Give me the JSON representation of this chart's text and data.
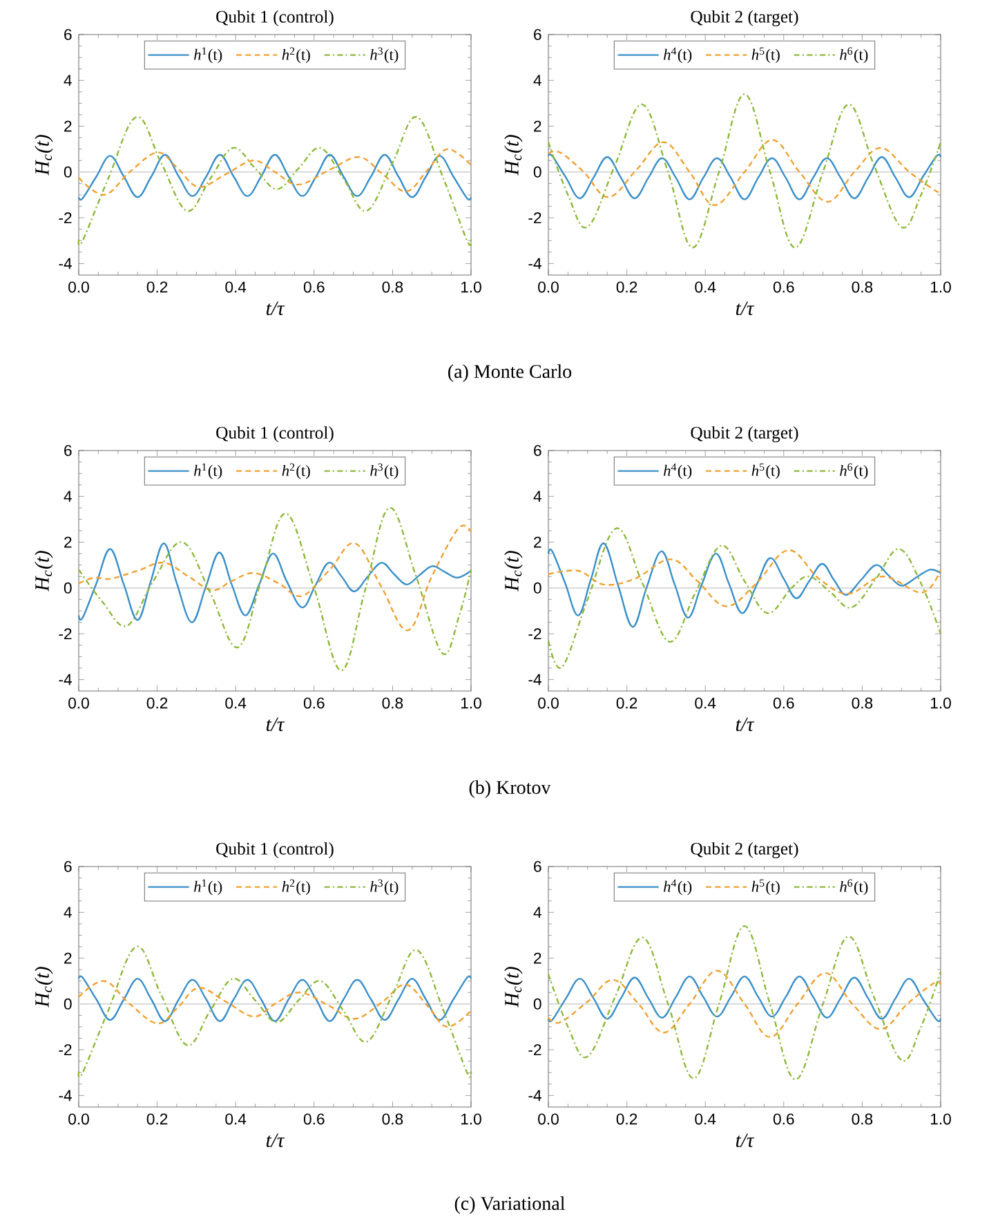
{
  "chart_data": [
    {
      "type": "line",
      "title": "Qubit 1 (control)",
      "xlabel": "t/τ",
      "ylabel": "H$_{c}$(t)",
      "xlim": [
        0,
        1
      ],
      "ylim": [
        -4.5,
        6
      ],
      "xticks": [
        {
          "value": 0,
          "label": "0.0"
        },
        {
          "value": 0.2,
          "label": "0.2"
        },
        {
          "value": 0.4,
          "label": "0.4"
        },
        {
          "value": 0.6,
          "label": "0.6"
        },
        {
          "value": 0.8,
          "label": "0.8"
        },
        {
          "value": 1,
          "label": "1.0"
        }
      ],
      "yticks": [
        -4,
        -2,
        0,
        2,
        4,
        6
      ],
      "legend": "top",
      "ref_lines": [
        {
          "axis": "y",
          "value": 0,
          "color": "#d6d6d6"
        }
      ],
      "annotations": [
        "(a) Monte Carlo"
      ],
      "series": [
        {
          "name": "*h*$^{1}$(t)",
          "color": "#3a8fc9",
          "line_style": "solid",
          "x": [
            0,
            0.01,
            0.045,
            0.08,
            0.115,
            0.15,
            0.185,
            0.22,
            0.255,
            0.29,
            0.325,
            0.36,
            0.395,
            0.43,
            0.465,
            0.5,
            0.535,
            0.57,
            0.605,
            0.64,
            0.675,
            0.71,
            0.745,
            0.78,
            0.815,
            0.85,
            0.885,
            0.92,
            0.955,
            0.99,
            1.0
          ],
          "values": [
            -1.1,
            -1.15,
            -0.2,
            0.7,
            -0.2,
            -1.1,
            -0.2,
            0.75,
            -0.2,
            -1.05,
            -0.2,
            0.75,
            -0.2,
            -1.05,
            -0.2,
            0.75,
            -0.2,
            -1.05,
            -0.2,
            0.75,
            -0.2,
            -1.05,
            -0.2,
            0.75,
            -0.2,
            -1.1,
            -0.2,
            0.7,
            -0.2,
            -1.15,
            -1.1
          ]
        },
        {
          "name": "*h*$^{2}$(t)",
          "color": "#f0a030",
          "line_style": "dashed",
          "x": [
            0,
            0.065,
            0.13,
            0.2,
            0.25,
            0.305,
            0.375,
            0.445,
            0.5,
            0.56,
            0.64,
            0.715,
            0.775,
            0.835,
            0.89,
            0.94,
            1.0
          ],
          "values": [
            -0.25,
            -1.0,
            0.0,
            0.85,
            0.2,
            -0.65,
            -0.1,
            0.5,
            0.0,
            -0.55,
            0.1,
            0.65,
            -0.1,
            -0.85,
            0.1,
            1.0,
            0.3
          ]
        },
        {
          "name": "*h*$^{3}$(t)",
          "color": "#8db83a",
          "line_style": "dotted",
          "x": [
            0,
            0.01,
            0.075,
            0.147,
            0.21,
            0.276,
            0.335,
            0.393,
            0.45,
            0.505,
            0.56,
            0.616,
            0.675,
            0.734,
            0.8,
            0.862,
            0.93,
            0.99,
            1.0
          ],
          "values": [
            -2.95,
            -3.0,
            -0.3,
            2.4,
            0.4,
            -1.7,
            -0.3,
            1.05,
            0.15,
            -0.75,
            0.15,
            1.05,
            -0.3,
            -1.7,
            0.4,
            2.4,
            -0.3,
            -3.0,
            -2.95
          ]
        }
      ]
    },
    {
      "type": "line",
      "title": "Qubit 2 (target)",
      "xlabel": "t/τ",
      "ylabel": "H$_{c}$(t)",
      "xlim": [
        0,
        1
      ],
      "ylim": [
        -4.5,
        6
      ],
      "xticks": [
        {
          "value": 0,
          "label": "0.0"
        },
        {
          "value": 0.2,
          "label": "0.2"
        },
        {
          "value": 0.4,
          "label": "0.4"
        },
        {
          "value": 0.6,
          "label": "0.6"
        },
        {
          "value": 0.8,
          "label": "0.8"
        },
        {
          "value": 1,
          "label": "1.0"
        }
      ],
      "yticks": [
        -4,
        -2,
        0,
        2,
        4,
        6
      ],
      "legend": "top",
      "ref_lines": [
        {
          "axis": "y",
          "value": 0,
          "color": "#d6d6d6"
        }
      ],
      "series": [
        {
          "name": "*h*$^{4}$(t)",
          "color": "#3a8fc9",
          "line_style": "solid",
          "x": [
            0,
            0.01,
            0.045,
            0.08,
            0.115,
            0.15,
            0.185,
            0.22,
            0.255,
            0.29,
            0.325,
            0.36,
            0.395,
            0.43,
            0.465,
            0.5,
            0.535,
            0.57,
            0.605,
            0.64,
            0.675,
            0.71,
            0.745,
            0.78,
            0.815,
            0.85,
            0.885,
            0.92,
            0.955,
            0.99,
            1.0
          ],
          "values": [
            0.7,
            0.7,
            -0.25,
            -1.15,
            -0.25,
            0.65,
            -0.25,
            -1.15,
            -0.25,
            0.6,
            -0.25,
            -1.2,
            -0.25,
            0.6,
            -0.25,
            -1.2,
            -0.25,
            0.6,
            -0.25,
            -1.2,
            -0.25,
            0.6,
            -0.25,
            -1.15,
            -0.25,
            0.65,
            -0.25,
            -1.1,
            -0.2,
            0.7,
            0.65
          ]
        },
        {
          "name": "*h*$^{5}$(t)",
          "color": "#f0a030",
          "line_style": "dashed",
          "x": [
            0,
            0.03,
            0.09,
            0.153,
            0.225,
            0.294,
            0.36,
            0.424,
            0.5,
            0.571,
            0.64,
            0.712,
            0.78,
            0.847,
            0.92,
            0.99,
            1.0
          ],
          "values": [
            0.8,
            0.85,
            0.0,
            -1.1,
            0.1,
            1.3,
            0.0,
            -1.45,
            0.0,
            1.4,
            0.0,
            -1.3,
            0.0,
            1.05,
            0.0,
            -0.85,
            -0.8
          ]
        },
        {
          "name": "*h*$^{6}$(t)",
          "color": "#8db83a",
          "line_style": "dotted",
          "x": [
            0,
            0.05,
            0.1,
            0.17,
            0.239,
            0.305,
            0.368,
            0.435,
            0.5,
            0.565,
            0.629,
            0.7,
            0.765,
            0.83,
            0.9,
            0.95,
            1.0
          ],
          "values": [
            1.3,
            -1.0,
            -2.4,
            0.3,
            2.95,
            0.0,
            -3.3,
            0.0,
            3.4,
            0.0,
            -3.3,
            0.0,
            2.95,
            0.3,
            -2.4,
            -1.0,
            1.3
          ]
        }
      ]
    },
    {
      "type": "line",
      "title": "Qubit 1 (control)",
      "xlabel": "t/τ",
      "ylabel": "H$_{c}$(t)",
      "xlim": [
        0,
        1
      ],
      "ylim": [
        -4.5,
        6
      ],
      "xticks": [
        {
          "value": 0,
          "label": "0.0"
        },
        {
          "value": 0.2,
          "label": "0.2"
        },
        {
          "value": 0.4,
          "label": "0.4"
        },
        {
          "value": 0.6,
          "label": "0.6"
        },
        {
          "value": 0.8,
          "label": "0.8"
        },
        {
          "value": 1,
          "label": "1.0"
        }
      ],
      "yticks": [
        -4,
        -2,
        0,
        2,
        4,
        6
      ],
      "legend": "top",
      "ref_lines": [
        {
          "axis": "y",
          "value": 0,
          "color": "#d6d6d6"
        }
      ],
      "annotations": [
        "(b) Krotov"
      ],
      "series": [
        {
          "name": "*h*$^{1}$(t)",
          "color": "#3a8fc9",
          "line_style": "solid",
          "x": [
            0,
            0.01,
            0.045,
            0.08,
            0.115,
            0.15,
            0.183,
            0.217,
            0.25,
            0.288,
            0.323,
            0.358,
            0.39,
            0.425,
            0.46,
            0.495,
            0.53,
            0.569,
            0.603,
            0.637,
            0.67,
            0.702,
            0.737,
            0.772,
            0.804,
            0.836,
            0.868,
            0.901,
            0.933,
            0.965,
            1.0
          ],
          "values": [
            -1.2,
            -1.3,
            0.2,
            1.7,
            0.15,
            -1.4,
            0.25,
            1.95,
            0.2,
            -1.5,
            0.0,
            1.55,
            0.15,
            -1.2,
            0.15,
            1.5,
            0.3,
            -0.85,
            0.1,
            1.1,
            0.5,
            -0.15,
            0.5,
            1.1,
            0.6,
            0.15,
            0.55,
            0.95,
            0.7,
            0.45,
            0.75
          ]
        },
        {
          "name": "*h*$^{2}$(t)",
          "color": "#f0a030",
          "line_style": "dashed",
          "x": [
            0,
            0.04,
            0.08,
            0.15,
            0.217,
            0.28,
            0.34,
            0.39,
            0.446,
            0.51,
            0.569,
            0.64,
            0.704,
            0.77,
            0.839,
            0.9,
            0.968,
            1.0
          ],
          "values": [
            0.2,
            0.45,
            0.4,
            0.75,
            1.1,
            0.5,
            -0.1,
            0.3,
            0.65,
            0.2,
            -0.35,
            0.8,
            1.95,
            0.1,
            -1.85,
            0.5,
            2.6,
            2.45
          ]
        },
        {
          "name": "*h*$^{3}$(t)",
          "color": "#8db83a",
          "line_style": "dotted",
          "x": [
            0,
            0.06,
            0.123,
            0.19,
            0.264,
            0.335,
            0.405,
            0.465,
            0.528,
            0.6,
            0.669,
            0.73,
            0.792,
            0.86,
            0.927,
            0.97,
            1.0
          ],
          "values": [
            0.8,
            -0.6,
            -1.65,
            0.3,
            2.0,
            -0.2,
            -2.6,
            0.3,
            3.25,
            0.0,
            -3.6,
            -0.1,
            3.5,
            0.5,
            -2.85,
            -1.2,
            0.8
          ]
        }
      ]
    },
    {
      "type": "line",
      "title": "Qubit 2 (target)",
      "xlabel": "t/τ",
      "ylabel": "H$_{c}$(t)",
      "xlim": [
        0,
        1
      ],
      "ylim": [
        -4.5,
        6
      ],
      "xticks": [
        {
          "value": 0,
          "label": "0.0"
        },
        {
          "value": 0.2,
          "label": "0.2"
        },
        {
          "value": 0.4,
          "label": "0.4"
        },
        {
          "value": 0.6,
          "label": "0.6"
        },
        {
          "value": 0.8,
          "label": "0.8"
        },
        {
          "value": 1,
          "label": "1.0"
        }
      ],
      "yticks": [
        -4,
        -2,
        0,
        2,
        4,
        6
      ],
      "legend": "top",
      "ref_lines": [
        {
          "axis": "y",
          "value": 0,
          "color": "#d6d6d6"
        }
      ],
      "series": [
        {
          "name": "*h*$^{4}$(t)",
          "color": "#3a8fc9",
          "line_style": "solid",
          "x": [
            0,
            0.01,
            0.043,
            0.076,
            0.108,
            0.141,
            0.178,
            0.215,
            0.25,
            0.288,
            0.322,
            0.356,
            0.39,
            0.427,
            0.46,
            0.494,
            0.53,
            0.565,
            0.6,
            0.632,
            0.665,
            0.698,
            0.728,
            0.759,
            0.797,
            0.835,
            0.867,
            0.9,
            0.937,
            0.973,
            1.0
          ],
          "values": [
            1.5,
            1.6,
            0.2,
            -1.2,
            0.35,
            1.95,
            0.1,
            -1.7,
            0.0,
            1.6,
            0.15,
            -1.3,
            0.1,
            1.5,
            0.2,
            -1.1,
            0.1,
            1.3,
            0.4,
            -0.45,
            0.3,
            1.05,
            0.35,
            -0.3,
            0.35,
            1.0,
            0.55,
            0.1,
            0.45,
            0.8,
            0.65
          ]
        },
        {
          "name": "*h*$^{5}$(t)",
          "color": "#f0a030",
          "line_style": "dashed",
          "x": [
            0,
            0.076,
            0.141,
            0.22,
            0.312,
            0.38,
            0.453,
            0.53,
            0.612,
            0.69,
            0.765,
            0.853,
            0.953,
            1.0
          ],
          "values": [
            0.6,
            0.75,
            0.15,
            0.4,
            1.25,
            0.3,
            -0.8,
            0.2,
            1.65,
            0.4,
            -0.25,
            0.5,
            -0.2,
            0.8
          ]
        },
        {
          "name": "*h*$^{6}$(t)",
          "color": "#8db83a",
          "line_style": "dotted",
          "x": [
            0,
            0.035,
            0.1,
            0.173,
            0.24,
            0.309,
            0.375,
            0.441,
            0.5,
            0.559,
            0.62,
            0.665,
            0.72,
            0.773,
            0.835,
            0.894,
            0.95,
            1.0
          ],
          "values": [
            -2.3,
            -3.45,
            -0.5,
            2.6,
            0.2,
            -2.35,
            -0.2,
            1.85,
            0.3,
            -1.1,
            0.0,
            0.5,
            -0.2,
            -0.85,
            0.4,
            1.7,
            0.2,
            -2.0
          ]
        }
      ]
    },
    {
      "type": "line",
      "title": "Qubit 1 (control)",
      "xlabel": "t/τ",
      "ylabel": "H$_{c}$(t)",
      "xlim": [
        0,
        1
      ],
      "ylim": [
        -4.5,
        6
      ],
      "xticks": [
        {
          "value": 0,
          "label": "0.0"
        },
        {
          "value": 0.2,
          "label": "0.2"
        },
        {
          "value": 0.4,
          "label": "0.4"
        },
        {
          "value": 0.6,
          "label": "0.6"
        },
        {
          "value": 0.8,
          "label": "0.8"
        },
        {
          "value": 1,
          "label": "1.0"
        }
      ],
      "yticks": [
        -4,
        -2,
        0,
        2,
        4,
        6
      ],
      "legend": "top",
      "ref_lines": [
        {
          "axis": "y",
          "value": 0,
          "color": "#d6d6d6"
        }
      ],
      "annotations": [
        "(c) Variational"
      ],
      "series": [
        {
          "name": "*h*$^{1}$(t)",
          "color": "#3a8fc9",
          "line_style": "solid",
          "x": [
            0,
            0.01,
            0.045,
            0.08,
            0.115,
            0.15,
            0.185,
            0.22,
            0.255,
            0.29,
            0.325,
            0.36,
            0.395,
            0.43,
            0.465,
            0.5,
            0.535,
            0.57,
            0.605,
            0.64,
            0.675,
            0.71,
            0.745,
            0.78,
            0.815,
            0.85,
            0.885,
            0.92,
            0.955,
            0.99,
            1.0
          ],
          "values": [
            1.1,
            1.15,
            0.2,
            -0.7,
            0.2,
            1.1,
            0.2,
            -0.75,
            0.2,
            1.05,
            0.2,
            -0.75,
            0.2,
            1.05,
            0.2,
            -0.75,
            0.2,
            1.05,
            0.2,
            -0.75,
            0.2,
            1.05,
            0.2,
            -0.7,
            0.2,
            1.1,
            0.2,
            -0.7,
            0.2,
            1.15,
            1.1
          ]
        },
        {
          "name": "*h*$^{2}$(t)",
          "color": "#f0a030",
          "line_style": "dashed",
          "x": [
            0,
            0.065,
            0.13,
            0.2,
            0.25,
            0.305,
            0.375,
            0.446,
            0.5,
            0.563,
            0.64,
            0.704,
            0.775,
            0.833,
            0.89,
            0.939,
            1.0
          ],
          "values": [
            0.3,
            1.0,
            0.0,
            -0.85,
            -0.2,
            0.7,
            0.1,
            -0.55,
            0.0,
            0.5,
            -0.1,
            -0.65,
            0.1,
            0.85,
            -0.1,
            -1.0,
            -0.3
          ]
        },
        {
          "name": "*h*$^{3}$(t)",
          "color": "#8db83a",
          "line_style": "dotted",
          "x": [
            0,
            0.01,
            0.075,
            0.147,
            0.21,
            0.276,
            0.335,
            0.393,
            0.45,
            0.505,
            0.56,
            0.616,
            0.675,
            0.734,
            0.8,
            0.862,
            0.93,
            0.99,
            1.0
          ],
          "values": [
            -2.95,
            -3.0,
            -0.3,
            2.5,
            0.4,
            -1.8,
            -0.3,
            1.1,
            0.15,
            -0.8,
            0.15,
            1.0,
            -0.3,
            -1.65,
            0.4,
            2.35,
            -0.3,
            -3.0,
            -2.95
          ]
        }
      ]
    },
    {
      "type": "line",
      "title": "Qubit 2 (target)",
      "xlabel": "t/τ",
      "ylabel": "H$_{c}$(t)",
      "xlim": [
        0,
        1
      ],
      "ylim": [
        -4.5,
        6
      ],
      "xticks": [
        {
          "value": 0,
          "label": "0.0"
        },
        {
          "value": 0.2,
          "label": "0.2"
        },
        {
          "value": 0.4,
          "label": "0.4"
        },
        {
          "value": 0.6,
          "label": "0.6"
        },
        {
          "value": 0.8,
          "label": "0.8"
        },
        {
          "value": 1,
          "label": "1.0"
        }
      ],
      "yticks": [
        -4,
        -2,
        0,
        2,
        4,
        6
      ],
      "legend": "top",
      "ref_lines": [
        {
          "axis": "y",
          "value": 0,
          "color": "#d6d6d6"
        }
      ],
      "series": [
        {
          "name": "*h*$^{4}$(t)",
          "color": "#3a8fc9",
          "line_style": "solid",
          "x": [
            0,
            0.01,
            0.045,
            0.08,
            0.115,
            0.15,
            0.185,
            0.22,
            0.255,
            0.29,
            0.325,
            0.36,
            0.395,
            0.43,
            0.465,
            0.5,
            0.535,
            0.57,
            0.605,
            0.64,
            0.675,
            0.71,
            0.745,
            0.78,
            0.815,
            0.85,
            0.885,
            0.92,
            0.955,
            0.99,
            1.0
          ],
          "values": [
            -0.65,
            -0.7,
            0.25,
            1.1,
            0.25,
            -0.65,
            0.25,
            1.15,
            0.25,
            -0.6,
            0.3,
            1.2,
            0.3,
            -0.55,
            0.3,
            1.2,
            0.3,
            -0.55,
            0.3,
            1.2,
            0.3,
            -0.6,
            0.25,
            1.15,
            0.25,
            -0.65,
            0.25,
            1.1,
            0.2,
            -0.7,
            -0.65
          ]
        },
        {
          "name": "*h*$^{5}$(t)",
          "color": "#f0a030",
          "line_style": "dashed",
          "x": [
            0,
            0.03,
            0.1,
            0.165,
            0.23,
            0.294,
            0.36,
            0.43,
            0.5,
            0.565,
            0.635,
            0.706,
            0.775,
            0.847,
            0.915,
            0.982,
            1.0
          ],
          "values": [
            -0.6,
            -0.8,
            0.1,
            1.05,
            0.0,
            -1.25,
            0.0,
            1.45,
            0.0,
            -1.45,
            0.0,
            1.35,
            0.0,
            -1.1,
            0.0,
            0.9,
            0.85
          ]
        },
        {
          "name": "*h*$^{6}$(t)",
          "color": "#8db83a",
          "line_style": "dotted",
          "x": [
            0,
            0.05,
            0.1,
            0.17,
            0.24,
            0.305,
            0.37,
            0.435,
            0.5,
            0.565,
            0.63,
            0.7,
            0.765,
            0.83,
            0.9,
            0.95,
            1.0
          ],
          "values": [
            1.3,
            -1.0,
            -2.3,
            0.3,
            2.9,
            0.0,
            -3.25,
            0.0,
            3.4,
            0.0,
            -3.3,
            0.0,
            2.95,
            0.3,
            -2.45,
            -1.0,
            1.4
          ]
        }
      ]
    }
  ]
}
